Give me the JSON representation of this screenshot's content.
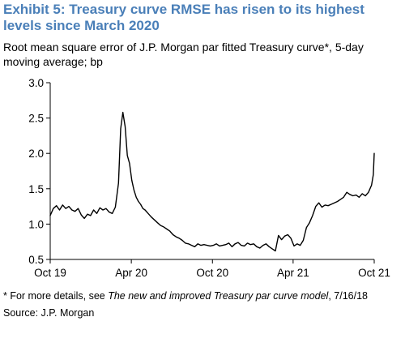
{
  "header": {
    "title": "Exhibit 5: Treasury curve RMSE has risen to its highest levels since March 2020",
    "subtitle": "Root mean square error of J.P. Morgan par fitted Treasury curve*, 5-day moving average; bp"
  },
  "footer": {
    "footnote_prefix": "* For more details, see ",
    "footnote_italic": "The new and improved Treasury par curve model",
    "footnote_suffix": ", 7/16/18",
    "source": "Source: J.P. Morgan"
  },
  "chart_data": {
    "type": "line",
    "title": "Exhibit 5: Treasury curve RMSE has risen to its highest levels since March 2020",
    "subtitle": "Root mean square error of J.P. Morgan par fitted Treasury curve*, 5-day moving average; bp",
    "xlabel": "",
    "ylabel": "",
    "ylim": [
      0.5,
      3.0
    ],
    "yticks": [
      0.5,
      1.0,
      1.5,
      2.0,
      2.5,
      3.0
    ],
    "ytick_labels": [
      "0.5",
      "1.0",
      "1.5",
      "2.0",
      "2.5",
      "3.0"
    ],
    "xlim": [
      "2019-10-01",
      "2021-10-01"
    ],
    "xticks": [
      "2019-10-01",
      "2020-04-01",
      "2020-10-01",
      "2021-04-01",
      "2021-10-01"
    ],
    "xtick_labels": [
      "Oct 19",
      "Apr 20",
      "Oct 20",
      "Apr 21",
      "Oct 21"
    ],
    "grid": false,
    "legend": "none",
    "line_color": "#000000",
    "series": [
      {
        "x": [
          "2019-10-01",
          "2019-10-08",
          "2019-10-15",
          "2019-10-22",
          "2019-10-29",
          "2019-11-05",
          "2019-11-12",
          "2019-11-19",
          "2019-11-26",
          "2019-12-03",
          "2019-12-10",
          "2019-12-17",
          "2019-12-24",
          "2019-12-31",
          "2020-01-07",
          "2020-01-14",
          "2020-01-21",
          "2020-01-28",
          "2020-02-04",
          "2020-02-11",
          "2020-02-18",
          "2020-02-25",
          "2020-03-03",
          "2020-03-08",
          "2020-03-13",
          "2020-03-18",
          "2020-03-23",
          "2020-03-28",
          "2020-04-02",
          "2020-04-07",
          "2020-04-12",
          "2020-04-17",
          "2020-04-22",
          "2020-04-27",
          "2020-05-02",
          "2020-05-09",
          "2020-05-16",
          "2020-05-23",
          "2020-05-30",
          "2020-06-06",
          "2020-06-13",
          "2020-06-20",
          "2020-06-27",
          "2020-07-04",
          "2020-07-11",
          "2020-07-18",
          "2020-07-25",
          "2020-08-01",
          "2020-08-08",
          "2020-08-15",
          "2020-08-22",
          "2020-08-29",
          "2020-09-05",
          "2020-09-12",
          "2020-09-19",
          "2020-09-26",
          "2020-10-03",
          "2020-10-10",
          "2020-10-17",
          "2020-10-24",
          "2020-10-31",
          "2020-11-07",
          "2020-11-14",
          "2020-11-21",
          "2020-11-28",
          "2020-12-05",
          "2020-12-12",
          "2020-12-19",
          "2020-12-26",
          "2021-01-02",
          "2021-01-09",
          "2021-01-16",
          "2021-01-23",
          "2021-01-30",
          "2021-02-06",
          "2021-02-13",
          "2021-02-20",
          "2021-02-27",
          "2021-03-06",
          "2021-03-13",
          "2021-03-20",
          "2021-03-27",
          "2021-04-03",
          "2021-04-10",
          "2021-04-17",
          "2021-04-24",
          "2021-05-01",
          "2021-05-08",
          "2021-05-15",
          "2021-05-22",
          "2021-05-29",
          "2021-06-05",
          "2021-06-12",
          "2021-06-19",
          "2021-06-26",
          "2021-07-03",
          "2021-07-10",
          "2021-07-17",
          "2021-07-24",
          "2021-07-31",
          "2021-08-07",
          "2021-08-14",
          "2021-08-21",
          "2021-08-28",
          "2021-09-04",
          "2021-09-11",
          "2021-09-18",
          "2021-09-25",
          "2021-09-29",
          "2021-10-01"
        ],
        "values": [
          1.12,
          1.22,
          1.26,
          1.2,
          1.27,
          1.22,
          1.25,
          1.2,
          1.18,
          1.22,
          1.13,
          1.08,
          1.14,
          1.12,
          1.2,
          1.15,
          1.23,
          1.2,
          1.22,
          1.17,
          1.15,
          1.24,
          1.58,
          2.35,
          2.58,
          2.38,
          1.97,
          1.86,
          1.62,
          1.48,
          1.38,
          1.32,
          1.28,
          1.22,
          1.2,
          1.15,
          1.1,
          1.06,
          1.02,
          0.98,
          0.96,
          0.93,
          0.9,
          0.85,
          0.82,
          0.8,
          0.77,
          0.73,
          0.72,
          0.7,
          0.68,
          0.72,
          0.7,
          0.71,
          0.7,
          0.69,
          0.7,
          0.72,
          0.69,
          0.7,
          0.71,
          0.73,
          0.68,
          0.72,
          0.74,
          0.7,
          0.69,
          0.73,
          0.71,
          0.72,
          0.68,
          0.66,
          0.7,
          0.72,
          0.68,
          0.65,
          0.62,
          0.84,
          0.78,
          0.83,
          0.85,
          0.8,
          0.69,
          0.72,
          0.7,
          0.77,
          0.95,
          1.02,
          1.12,
          1.25,
          1.3,
          1.24,
          1.27,
          1.26,
          1.28,
          1.3,
          1.32,
          1.35,
          1.38,
          1.45,
          1.42,
          1.4,
          1.41,
          1.38,
          1.43,
          1.4,
          1.45,
          1.55,
          1.7,
          2.0
        ]
      }
    ]
  }
}
